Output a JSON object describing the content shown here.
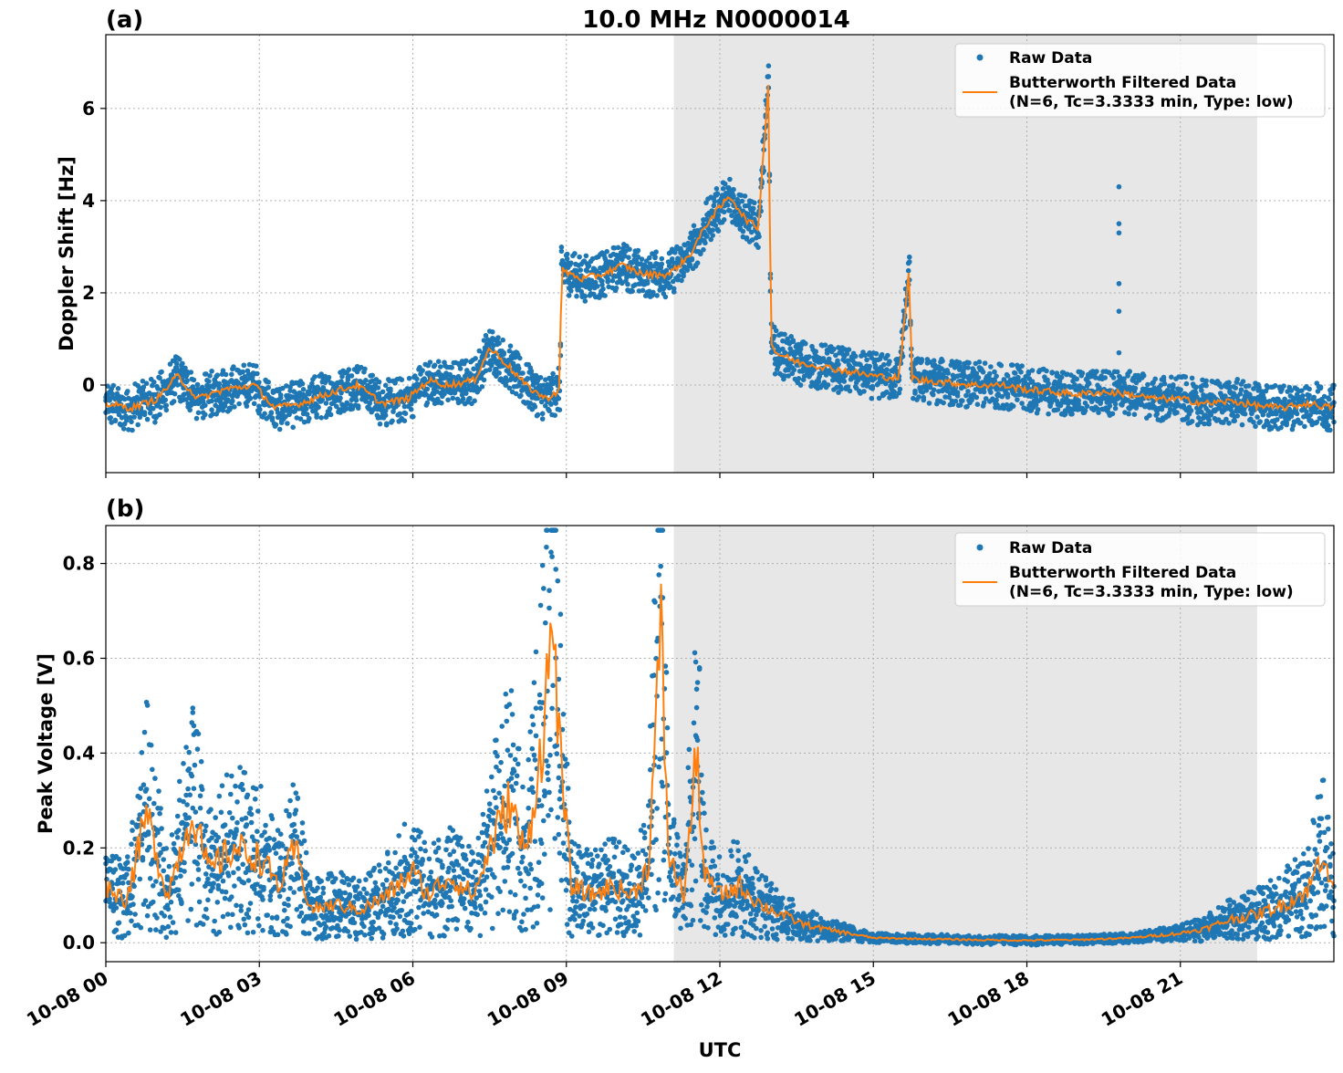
{
  "chart_data": [
    {
      "type": "scatter",
      "panel_label": "(a)",
      "title": "10.0 MHz N0000014",
      "ylabel": "Doppler Shift [Hz]",
      "xlabel": "",
      "xlim": [
        0,
        24
      ],
      "ylim": [
        -1.9,
        7.6
      ],
      "yticks": [
        0,
        2,
        4,
        6
      ],
      "xticks": [
        0,
        3,
        6,
        9,
        12,
        15,
        18,
        21
      ],
      "grid": true,
      "legend_position": "top-right",
      "night_shading_hours": [
        11.1,
        22.5
      ],
      "series": [
        {
          "name": "Raw Data",
          "style": "dots",
          "color": "#1f77b4",
          "x": [
            0,
            0.5,
            1,
            1.4,
            1.8,
            2.3,
            2.9,
            3.3,
            3.8,
            4.3,
            4.9,
            5.4,
            5.9,
            6.3,
            6.7,
            7.2,
            7.5,
            7.8,
            8.2,
            8.6,
            8.88,
            8.9,
            9.3,
            9.7,
            10.1,
            10.5,
            11,
            11.4,
            11.8,
            12.2,
            12.5,
            12.75,
            12.95,
            13.0,
            13.1,
            13.5,
            14,
            14.5,
            15,
            15.5,
            15.7,
            15.75,
            15.85,
            16,
            16.5,
            17,
            17.5,
            18,
            18.5,
            19,
            19.5,
            20,
            20.5,
            21,
            21.5,
            22,
            22.5,
            23,
            23.5,
            24
          ],
          "y": [
            -0.4,
            -0.5,
            -0.3,
            0.2,
            -0.3,
            -0.1,
            0.0,
            -0.5,
            -0.4,
            -0.2,
            0.0,
            -0.4,
            -0.3,
            0.1,
            0.0,
            0.1,
            0.8,
            0.5,
            0.0,
            -0.3,
            -0.1,
            2.5,
            2.3,
            2.4,
            2.6,
            2.4,
            2.4,
            2.8,
            3.6,
            4.1,
            3.6,
            3.4,
            6.6,
            0.9,
            0.7,
            0.5,
            0.4,
            0.3,
            0.2,
            0.15,
            2.5,
            0.2,
            0.1,
            0.1,
            0.05,
            0.0,
            0.0,
            -0.1,
            -0.15,
            -0.2,
            -0.15,
            -0.2,
            -0.3,
            -0.3,
            -0.4,
            -0.35,
            -0.45,
            -0.5,
            -0.4,
            -0.5
          ],
          "scatter_spread": 0.5,
          "outliers": [
            {
              "x": 19.8,
              "y": 4.3
            },
            {
              "x": 19.8,
              "y": 3.5
            },
            {
              "x": 19.8,
              "y": 3.3
            },
            {
              "x": 19.8,
              "y": 2.2
            },
            {
              "x": 19.8,
              "y": 1.6
            },
            {
              "x": 19.8,
              "y": 0.7
            }
          ]
        },
        {
          "name": "Butterworth Filtered Data\n(N=6, Tc=3.3333 min, Type: low)",
          "style": "line",
          "color": "#ff7f0e",
          "x": [
            0,
            0.5,
            1,
            1.4,
            1.8,
            2.3,
            2.9,
            3.3,
            3.8,
            4.3,
            4.9,
            5.4,
            5.9,
            6.3,
            6.7,
            7.2,
            7.5,
            7.8,
            8.2,
            8.6,
            8.88,
            8.9,
            9.3,
            9.7,
            10.1,
            10.5,
            11,
            11.4,
            11.8,
            12.2,
            12.5,
            12.75,
            12.95,
            13.0,
            13.1,
            13.5,
            14,
            14.5,
            15,
            15.5,
            15.7,
            15.75,
            15.85,
            16,
            16.5,
            17,
            17.5,
            18,
            18.5,
            19,
            19.5,
            20,
            20.5,
            21,
            21.5,
            22,
            22.5,
            23,
            23.5,
            24
          ],
          "y": [
            -0.4,
            -0.5,
            -0.3,
            0.2,
            -0.3,
            -0.1,
            0.0,
            -0.5,
            -0.4,
            -0.2,
            0.0,
            -0.4,
            -0.3,
            0.1,
            0.0,
            0.1,
            0.8,
            0.5,
            0.0,
            -0.3,
            -0.1,
            2.5,
            2.3,
            2.4,
            2.6,
            2.4,
            2.4,
            2.8,
            3.6,
            4.1,
            3.6,
            3.4,
            6.6,
            0.9,
            0.7,
            0.5,
            0.4,
            0.3,
            0.2,
            0.15,
            2.5,
            0.2,
            0.1,
            0.1,
            0.05,
            0.0,
            0.0,
            -0.1,
            -0.15,
            -0.2,
            -0.15,
            -0.2,
            -0.3,
            -0.3,
            -0.4,
            -0.35,
            -0.45,
            -0.5,
            -0.4,
            -0.5
          ]
        }
      ]
    },
    {
      "type": "scatter",
      "panel_label": "(b)",
      "title": "",
      "ylabel": "Peak Voltage [V]",
      "xlabel": "UTC",
      "xlim": [
        0,
        24
      ],
      "ylim": [
        -0.04,
        0.88
      ],
      "yticks": [
        0.0,
        0.2,
        0.4,
        0.6,
        0.8
      ],
      "ytick_labels": [
        "0.0",
        "0.2",
        "0.4",
        "0.6",
        "0.8"
      ],
      "xticks": [
        0,
        3,
        6,
        9,
        12,
        15,
        18,
        21
      ],
      "xtick_labels": [
        "10-08 00",
        "10-08 03",
        "10-08 06",
        "10-08 09",
        "10-08 12",
        "10-08 15",
        "10-08 18",
        "10-08 21"
      ],
      "grid": true,
      "legend_position": "top-right",
      "night_shading_hours": [
        11.1,
        22.5
      ],
      "series": [
        {
          "name": "Raw Data",
          "style": "dots",
          "color": "#1f77b4",
          "x": [
            0,
            0.4,
            0.8,
            1.2,
            1.7,
            2.0,
            2.5,
            3.0,
            3.4,
            3.7,
            4.0,
            4.5,
            5.0,
            5.5,
            6.0,
            6.3,
            6.7,
            7.2,
            7.5,
            7.9,
            8.2,
            8.5,
            8.75,
            8.9,
            9.1,
            9.5,
            9.9,
            10.3,
            10.6,
            10.85,
            11.0,
            11.3,
            11.55,
            11.7,
            12.0,
            12.4,
            12.8,
            13.2,
            13.6,
            14.0,
            14.5,
            15.0,
            16.0,
            17.0,
            18.0,
            19.0,
            20.0,
            20.5,
            21.0,
            21.5,
            22.0,
            22.5,
            23.0,
            23.5,
            23.8,
            24
          ],
          "y": [
            0.12,
            0.09,
            0.27,
            0.1,
            0.28,
            0.15,
            0.2,
            0.18,
            0.12,
            0.2,
            0.07,
            0.08,
            0.07,
            0.1,
            0.15,
            0.1,
            0.14,
            0.1,
            0.2,
            0.3,
            0.18,
            0.4,
            0.68,
            0.35,
            0.12,
            0.1,
            0.12,
            0.1,
            0.16,
            0.65,
            0.18,
            0.1,
            0.4,
            0.14,
            0.1,
            0.12,
            0.08,
            0.06,
            0.04,
            0.03,
            0.02,
            0.01,
            0.008,
            0.006,
            0.005,
            0.006,
            0.01,
            0.015,
            0.02,
            0.03,
            0.05,
            0.06,
            0.08,
            0.11,
            0.2,
            0.1
          ],
          "scatter_spread": 0.12
        },
        {
          "name": "Butterworth Filtered Data\n(N=6, Tc=3.3333 min, Type: low)",
          "style": "line",
          "color": "#ff7f0e",
          "x": [
            0,
            0.4,
            0.8,
            1.2,
            1.7,
            2.0,
            2.5,
            3.0,
            3.4,
            3.7,
            4.0,
            4.5,
            5.0,
            5.5,
            6.0,
            6.3,
            6.7,
            7.2,
            7.5,
            7.9,
            8.2,
            8.5,
            8.75,
            8.9,
            9.1,
            9.5,
            9.9,
            10.3,
            10.6,
            10.85,
            11.0,
            11.3,
            11.55,
            11.7,
            12.0,
            12.4,
            12.8,
            13.2,
            13.6,
            14.0,
            14.5,
            15.0,
            16.0,
            17.0,
            18.0,
            19.0,
            20.0,
            20.5,
            21.0,
            21.5,
            22.0,
            22.5,
            23.0,
            23.5,
            23.8,
            24
          ],
          "y": [
            0.12,
            0.09,
            0.27,
            0.1,
            0.28,
            0.15,
            0.2,
            0.18,
            0.12,
            0.2,
            0.07,
            0.08,
            0.07,
            0.1,
            0.15,
            0.1,
            0.14,
            0.1,
            0.2,
            0.3,
            0.18,
            0.4,
            0.68,
            0.35,
            0.12,
            0.1,
            0.12,
            0.1,
            0.16,
            0.65,
            0.18,
            0.1,
            0.4,
            0.14,
            0.1,
            0.12,
            0.08,
            0.06,
            0.04,
            0.03,
            0.02,
            0.01,
            0.008,
            0.006,
            0.005,
            0.006,
            0.01,
            0.015,
            0.02,
            0.03,
            0.05,
            0.06,
            0.08,
            0.11,
            0.2,
            0.1
          ]
        }
      ]
    }
  ],
  "legend": {
    "raw_label": "Raw Data",
    "filtered_label_line1": "Butterworth Filtered Data",
    "filtered_label_line2": "(N=6, Tc=3.3333 min, Type: low)"
  }
}
